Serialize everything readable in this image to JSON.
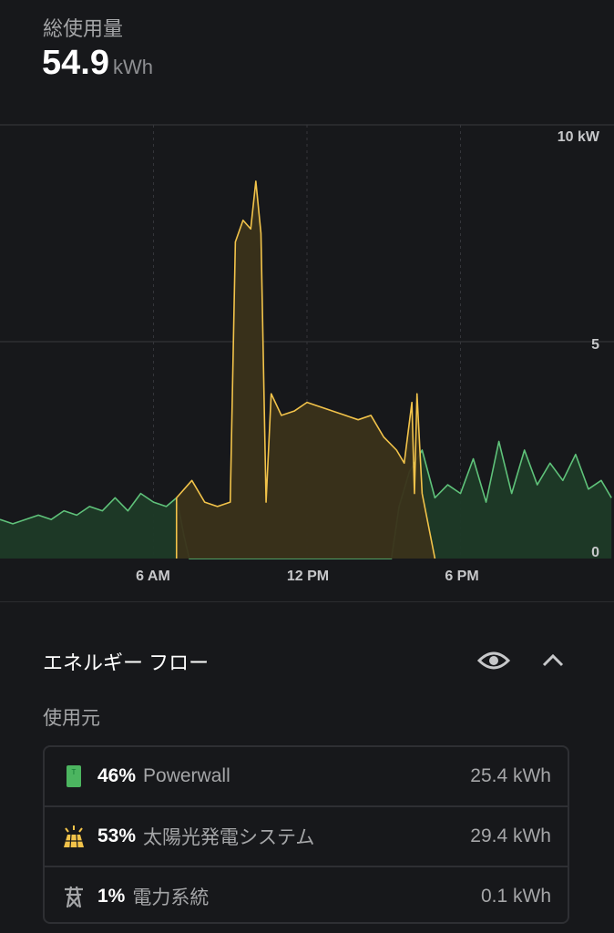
{
  "header": {
    "title": "総使用量",
    "total_value": "54.9",
    "total_unit": "kWh"
  },
  "chart_data": {
    "type": "area",
    "x_ticks": [
      "6 AM",
      "12 PM",
      "6 PM"
    ],
    "x_tick_hours": [
      6,
      12,
      18
    ],
    "xlim": [
      0,
      24
    ],
    "y_ticks": [
      "10 kW",
      "5",
      "0"
    ],
    "y_tick_values": [
      10,
      5,
      0
    ],
    "ylim": [
      0,
      10
    ],
    "grid": true,
    "series": [
      {
        "color": "#5fc27a",
        "fill": "#1d3a27",
        "points": [
          [
            0,
            0.9
          ],
          [
            0.5,
            0.8
          ],
          [
            1,
            0.9
          ],
          [
            1.5,
            1.0
          ],
          [
            2,
            0.9
          ],
          [
            2.5,
            1.1
          ],
          [
            3,
            1.0
          ],
          [
            3.5,
            1.2
          ],
          [
            4,
            1.1
          ],
          [
            4.5,
            1.4
          ],
          [
            5,
            1.1
          ],
          [
            5.5,
            1.5
          ],
          [
            6,
            1.3
          ],
          [
            6.5,
            1.2
          ],
          [
            6.9,
            1.4
          ],
          [
            7.2,
            0.5
          ],
          [
            7.4,
            0
          ],
          [
            15.3,
            0
          ],
          [
            15.6,
            1.2
          ],
          [
            16,
            2.0
          ],
          [
            16.5,
            2.5
          ],
          [
            17,
            1.4
          ],
          [
            17.5,
            1.7
          ],
          [
            18,
            1.5
          ],
          [
            18.5,
            2.3
          ],
          [
            19,
            1.3
          ],
          [
            19.5,
            2.7
          ],
          [
            20,
            1.5
          ],
          [
            20.5,
            2.5
          ],
          [
            21,
            1.7
          ],
          [
            21.5,
            2.2
          ],
          [
            22,
            1.8
          ],
          [
            22.5,
            2.4
          ],
          [
            23,
            1.6
          ],
          [
            23.5,
            1.8
          ],
          [
            23.9,
            1.4
          ]
        ]
      },
      {
        "color": "#f2c34a",
        "fill": "#3a321a",
        "points": [
          [
            6.9,
            0
          ],
          [
            6.9,
            1.4
          ],
          [
            7.5,
            1.8
          ],
          [
            8,
            1.3
          ],
          [
            8.5,
            1.2
          ],
          [
            9,
            1.3
          ],
          [
            9.2,
            7.3
          ],
          [
            9.5,
            7.8
          ],
          [
            9.8,
            7.6
          ],
          [
            10,
            8.7
          ],
          [
            10.2,
            7.5
          ],
          [
            10.4,
            1.3
          ],
          [
            10.6,
            3.8
          ],
          [
            11,
            3.3
          ],
          [
            11.5,
            3.4
          ],
          [
            12,
            3.6
          ],
          [
            12.5,
            3.5
          ],
          [
            13,
            3.4
          ],
          [
            13.5,
            3.3
          ],
          [
            14,
            3.2
          ],
          [
            14.5,
            3.3
          ],
          [
            15,
            2.8
          ],
          [
            15.5,
            2.5
          ],
          [
            15.8,
            2.2
          ],
          [
            16.1,
            3.6
          ],
          [
            16.2,
            1.5
          ],
          [
            16.3,
            3.8
          ],
          [
            16.5,
            1.5
          ],
          [
            17,
            0
          ]
        ]
      }
    ]
  },
  "flow": {
    "title": "エネルギー フロー",
    "source_label": "使用元",
    "rows": [
      {
        "icon": "powerwall-icon",
        "pct": "46%",
        "name": "Powerwall",
        "value": "25.4 kWh"
      },
      {
        "icon": "solar-panel-icon",
        "pct": "53%",
        "name": "太陽光発電システム",
        "value": "29.4 kWh"
      },
      {
        "icon": "grid-tower-icon",
        "pct": "1%",
        "name": "電力系統",
        "value": "0.1 kWh"
      }
    ]
  }
}
